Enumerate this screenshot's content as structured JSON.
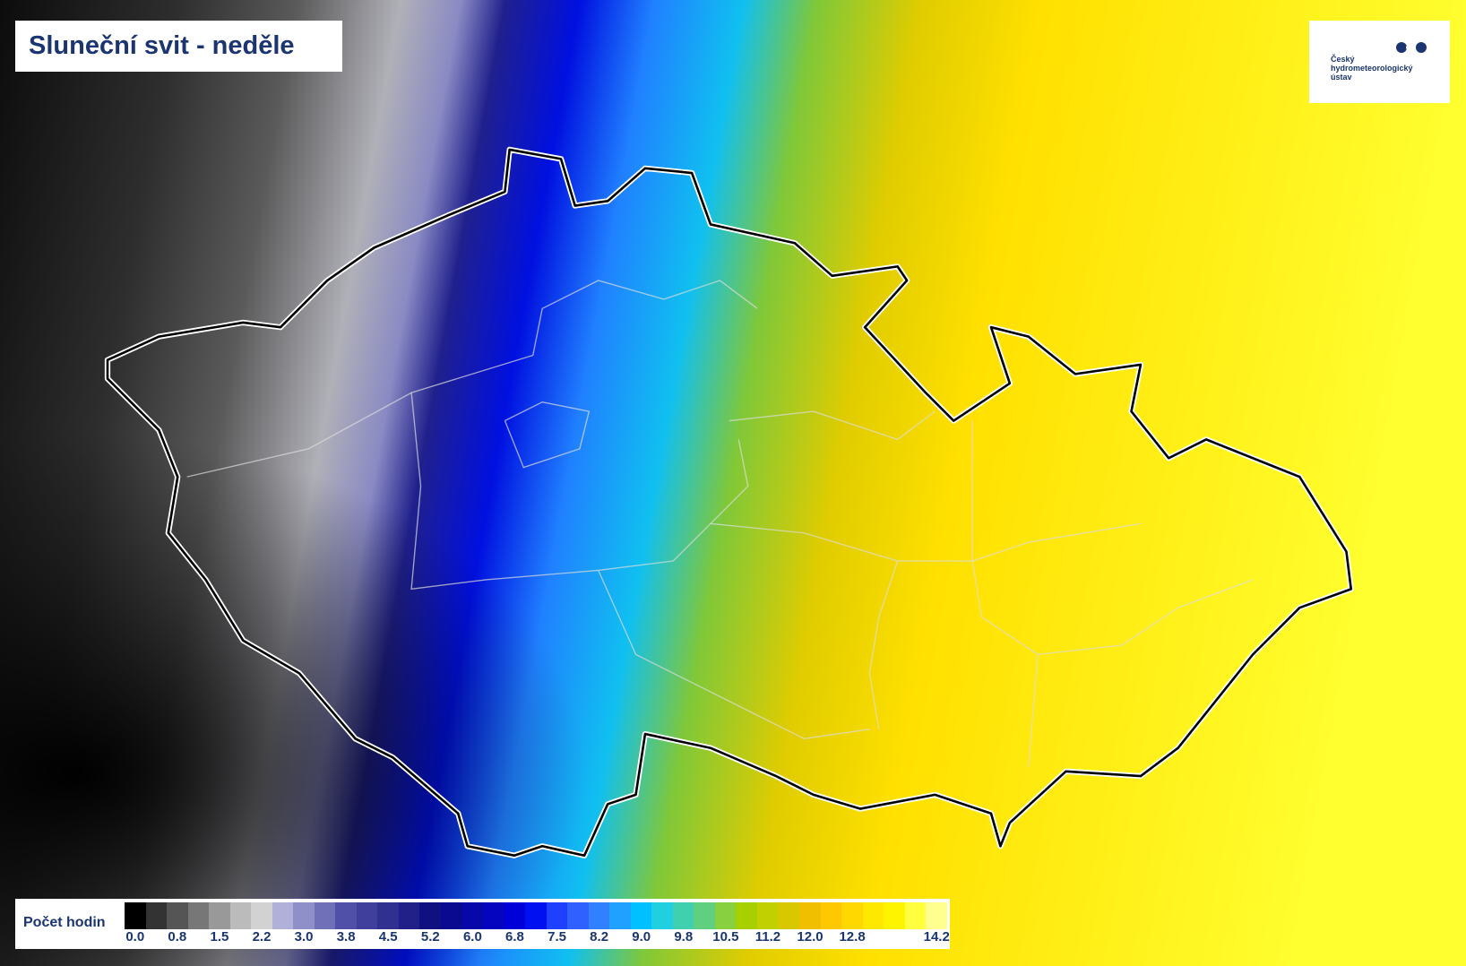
{
  "header": {
    "title": "Sluneční svit - neděle"
  },
  "logo": {
    "lines": [
      "Český",
      "hydrometeorologický",
      "ústav"
    ]
  },
  "legend": {
    "label": "Počet hodin",
    "colors": [
      "#000000",
      "#333333",
      "#555555",
      "#777777",
      "#999999",
      "#bbbbbb",
      "#d2d2d2",
      "#b0b0d8",
      "#9090c8",
      "#7070b8",
      "#5050a8",
      "#40409c",
      "#303090",
      "#202088",
      "#101080",
      "#0a0a90",
      "#0808a8",
      "#0505c0",
      "#0000d8",
      "#0010f0",
      "#2040ff",
      "#3060ff",
      "#3080ff",
      "#20a0ff",
      "#00c0ff",
      "#20d0e0",
      "#40d0b0",
      "#60d080",
      "#88d040",
      "#a8d000",
      "#c0d000",
      "#d8c800",
      "#f0c000",
      "#ffc800",
      "#ffd800",
      "#ffe800",
      "#fff400",
      "#ffff40",
      "#ffff90"
    ],
    "labels": [
      "0.0",
      "0.8",
      "1.5",
      "2.2",
      "3.0",
      "3.8",
      "4.5",
      "5.2",
      "6.0",
      "6.8",
      "7.5",
      "8.2",
      "9.0",
      "9.8",
      "10.5",
      "11.2",
      "12.0",
      "12.8",
      "14.2"
    ]
  }
}
